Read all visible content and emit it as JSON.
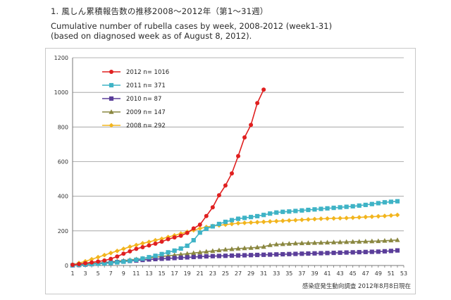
{
  "header": {
    "heading": "1. 風しん累積報告数の推移2008～2012年（第1～31週）",
    "subtitle_line1": "Cumulative number of rubella cases by week, 2008-2012 (week1-31)",
    "subtitle_line2": "(based on diagnosed week as of August 8, 2012)."
  },
  "source_note": "感染症発生動向調査 2012年8月8日現在",
  "chart_data": {
    "type": "line",
    "ylim": [
      0,
      1200
    ],
    "yticks": [
      0,
      200,
      400,
      600,
      800,
      1000,
      1200
    ],
    "xlim": [
      1,
      53
    ],
    "xticks": [
      1,
      3,
      5,
      7,
      9,
      11,
      13,
      15,
      17,
      19,
      21,
      23,
      25,
      27,
      29,
      31,
      33,
      35,
      37,
      39,
      41,
      43,
      45,
      47,
      49,
      51,
      53
    ],
    "grid": "horizontal",
    "legend_position": "top-left",
    "series": [
      {
        "name": "2012 n= 1016",
        "color": "#e02020",
        "marker": "circle",
        "values": [
          4,
          8,
          13,
          18,
          23,
          29,
          38,
          52,
          68,
          82,
          96,
          106,
          116,
          126,
          138,
          152,
          162,
          172,
          188,
          214,
          236,
          286,
          336,
          406,
          462,
          532,
          632,
          740,
          812,
          938,
          1016
        ]
      },
      {
        "name": "2011 n= 371",
        "color": "#3fb3c6",
        "marker": "square",
        "values": [
          2,
          4,
          6,
          8,
          10,
          12,
          14,
          18,
          22,
          27,
          33,
          40,
          48,
          56,
          66,
          76,
          86,
          98,
          114,
          146,
          190,
          212,
          226,
          240,
          252,
          262,
          270,
          275,
          280,
          285,
          292,
          300,
          306,
          310,
          312,
          315,
          318,
          321,
          324,
          327,
          330,
          333,
          336,
          339,
          342,
          346,
          350,
          355,
          360,
          365,
          368,
          371
        ]
      },
      {
        "name": "2010 n= 87",
        "color": "#5b3e9a",
        "marker": "square",
        "values": [
          1,
          3,
          5,
          8,
          11,
          14,
          17,
          20,
          23,
          26,
          29,
          32,
          35,
          37,
          39,
          41,
          43,
          45,
          47,
          49,
          51,
          53,
          54,
          55,
          56,
          57,
          58,
          59,
          60,
          61,
          62,
          63,
          64,
          65,
          66,
          67,
          68,
          69,
          70,
          71,
          72,
          73,
          74,
          75,
          76,
          77,
          78,
          79,
          80,
          82,
          84,
          87
        ]
      },
      {
        "name": "2009 n= 147",
        "color": "#8a8740",
        "marker": "triangle",
        "values": [
          2,
          5,
          8,
          11,
          14,
          17,
          20,
          24,
          28,
          32,
          36,
          40,
          44,
          48,
          52,
          56,
          60,
          64,
          68,
          72,
          76,
          80,
          84,
          88,
          92,
          95,
          98,
          100,
          102,
          105,
          108,
          118,
          122,
          124,
          126,
          128,
          129,
          130,
          131,
          132,
          133,
          134,
          135,
          136,
          137,
          138,
          139,
          140,
          141,
          143,
          145,
          147
        ]
      },
      {
        "name": "2008 n= 292",
        "color": "#f2b51e",
        "marker": "diamond",
        "values": [
          5,
          14,
          24,
          36,
          48,
          60,
          72,
          84,
          96,
          108,
          118,
          128,
          136,
          146,
          154,
          164,
          174,
          184,
          194,
          204,
          214,
          222,
          228,
          232,
          236,
          240,
          244,
          246,
          248,
          250,
          252,
          254,
          256,
          258,
          260,
          262,
          264,
          266,
          268,
          270,
          271,
          272,
          273,
          274,
          276,
          278,
          280,
          282,
          284,
          286,
          289,
          292
        ]
      }
    ]
  }
}
